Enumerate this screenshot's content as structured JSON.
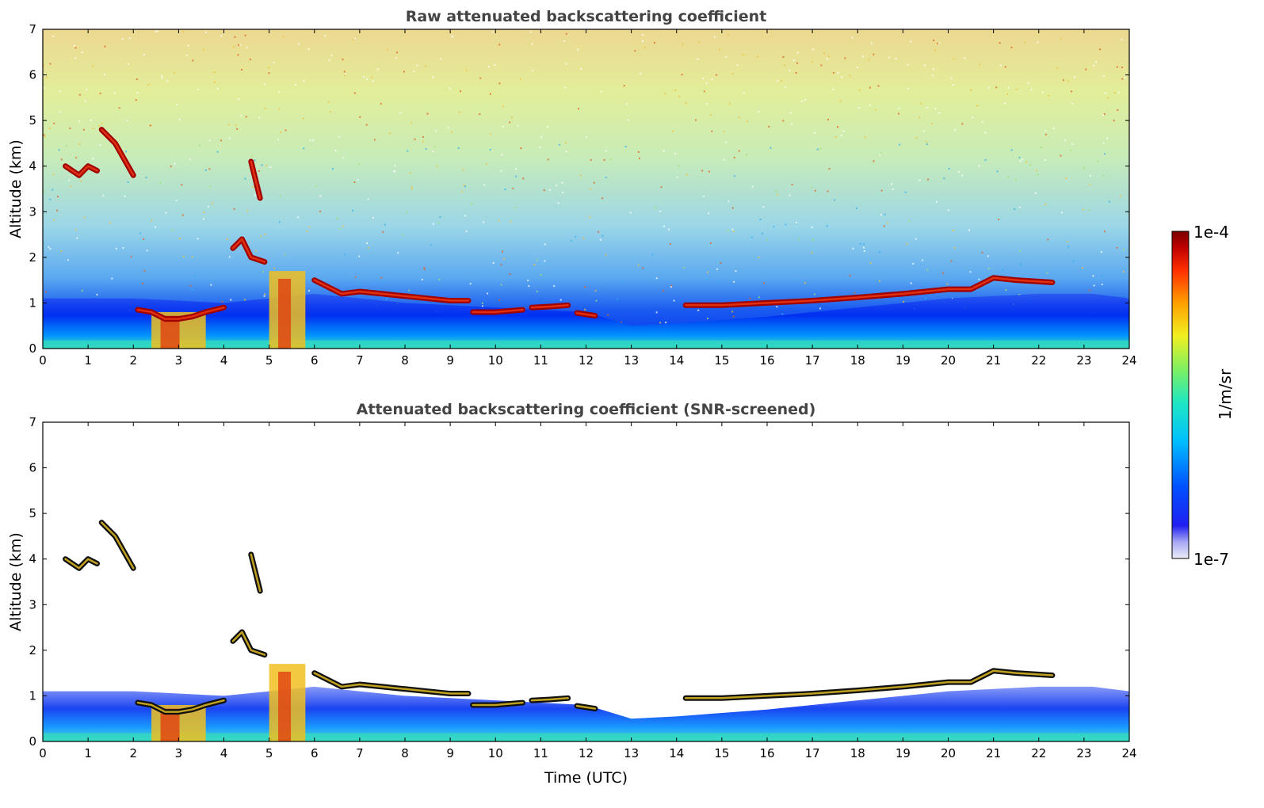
{
  "chart_data": [
    {
      "type": "heatmap",
      "title": "Raw attenuated backscattering coefficient",
      "xlabel": "",
      "ylabel": "Altitude (km)",
      "xlim": [
        0,
        24
      ],
      "ylim": [
        0,
        7
      ],
      "xticks": [
        "0",
        "1",
        "2",
        "3",
        "4",
        "5",
        "6",
        "7",
        "8",
        "9",
        "10",
        "11",
        "12",
        "13",
        "14",
        "15",
        "16",
        "17",
        "18",
        "19",
        "20",
        "21",
        "22",
        "23",
        "24"
      ],
      "yticks": [
        "0",
        "1",
        "2",
        "3",
        "4",
        "5",
        "6",
        "7"
      ],
      "screened": false,
      "cloud_layers": [
        {
          "x": [
            2.1,
            2.4,
            2.7,
            3.0,
            3.3,
            3.6,
            4.0
          ],
          "y": [
            0.85,
            0.8,
            0.65,
            0.65,
            0.7,
            0.8,
            0.9
          ]
        },
        {
          "x": [
            6.0,
            6.3,
            6.6,
            7.0,
            7.5,
            8.0,
            8.5,
            9.0,
            9.4
          ],
          "y": [
            1.5,
            1.35,
            1.2,
            1.25,
            1.2,
            1.15,
            1.1,
            1.05,
            1.05
          ]
        },
        {
          "x": [
            9.5,
            10.0,
            10.6
          ],
          "y": [
            0.8,
            0.8,
            0.85
          ]
        },
        {
          "x": [
            10.8,
            11.2,
            11.6
          ],
          "y": [
            0.9,
            0.92,
            0.95
          ]
        },
        {
          "x": [
            11.8,
            12.2
          ],
          "y": [
            0.78,
            0.72
          ]
        },
        {
          "x": [
            14.2,
            15.0,
            16.0,
            17.0,
            18.0,
            19.0,
            20.0,
            20.5,
            21.0,
            21.5,
            22.3
          ],
          "y": [
            0.95,
            0.95,
            1.0,
            1.05,
            1.12,
            1.2,
            1.3,
            1.3,
            1.55,
            1.5,
            1.45
          ]
        },
        {
          "x": [
            0.5,
            0.8,
            1.0,
            1.2
          ],
          "y": [
            4.0,
            3.8,
            4.0,
            3.9
          ]
        },
        {
          "x": [
            1.3,
            1.6,
            2.0
          ],
          "y": [
            4.8,
            4.5,
            3.8
          ]
        },
        {
          "x": [
            4.2,
            4.4,
            4.6,
            4.9
          ],
          "y": [
            2.2,
            2.4,
            2.0,
            1.9
          ]
        },
        {
          "x": [
            4.6,
            4.8
          ],
          "y": [
            4.1,
            3.3
          ]
        }
      ],
      "colorbar": {
        "min_label": "1e-7",
        "max_label": "1e-4",
        "unit": "1/m/sr",
        "scale": "log"
      }
    },
    {
      "type": "heatmap",
      "title": "Attenuated backscattering coefficient (SNR-screened)",
      "xlabel": "Time (UTC)",
      "ylabel": "Altitude (km)",
      "xlim": [
        0,
        24
      ],
      "ylim": [
        0,
        7
      ],
      "xticks": [
        "0",
        "1",
        "2",
        "3",
        "4",
        "5",
        "6",
        "7",
        "8",
        "9",
        "10",
        "11",
        "12",
        "13",
        "14",
        "15",
        "16",
        "17",
        "18",
        "19",
        "20",
        "21",
        "22",
        "23",
        "24"
      ],
      "yticks": [
        "0",
        "1",
        "2",
        "3",
        "4",
        "5",
        "6",
        "7"
      ],
      "screened": true,
      "cloud_layers": [
        {
          "x": [
            2.1,
            2.4,
            2.7,
            3.0,
            3.3,
            3.6,
            4.0
          ],
          "y": [
            0.85,
            0.8,
            0.65,
            0.65,
            0.7,
            0.8,
            0.9
          ]
        },
        {
          "x": [
            6.0,
            6.3,
            6.6,
            7.0,
            7.5,
            8.0,
            8.5,
            9.0,
            9.4
          ],
          "y": [
            1.5,
            1.35,
            1.2,
            1.25,
            1.2,
            1.15,
            1.1,
            1.05,
            1.05
          ]
        },
        {
          "x": [
            9.5,
            10.0,
            10.6
          ],
          "y": [
            0.8,
            0.8,
            0.85
          ]
        },
        {
          "x": [
            10.8,
            11.2,
            11.6
          ],
          "y": [
            0.9,
            0.92,
            0.95
          ]
        },
        {
          "x": [
            11.8,
            12.2
          ],
          "y": [
            0.78,
            0.72
          ]
        },
        {
          "x": [
            14.2,
            15.0,
            16.0,
            17.0,
            18.0,
            19.0,
            20.0,
            20.5,
            21.0,
            21.5,
            22.3
          ],
          "y": [
            0.95,
            0.95,
            1.0,
            1.05,
            1.12,
            1.2,
            1.3,
            1.3,
            1.55,
            1.5,
            1.45
          ]
        },
        {
          "x": [
            0.5,
            0.8,
            1.0,
            1.2
          ],
          "y": [
            4.0,
            3.8,
            4.0,
            3.9
          ]
        },
        {
          "x": [
            1.3,
            1.6,
            2.0
          ],
          "y": [
            4.8,
            4.5,
            3.8
          ]
        },
        {
          "x": [
            4.2,
            4.4,
            4.6,
            4.9
          ],
          "y": [
            2.2,
            2.4,
            2.0,
            1.9
          ]
        },
        {
          "x": [
            4.6,
            4.8
          ],
          "y": [
            4.1,
            3.3
          ]
        }
      ],
      "colorbar": {
        "min_label": "1e-7",
        "max_label": "1e-4",
        "unit": "1/m/sr",
        "scale": "log"
      }
    }
  ],
  "colorbar": {
    "max_label": "1e-4",
    "min_label": "1e-7",
    "unit_label": "1/m/sr"
  },
  "colors": {
    "background": "#ffffff",
    "title": "#444444",
    "colormap": [
      "#e8e8f8",
      "#9090f0",
      "#1010f0",
      "#0060ff",
      "#00c0ff",
      "#20e0c0",
      "#80f060",
      "#f0f020",
      "#ffa000",
      "#ff3000",
      "#c00000",
      "#800000"
    ]
  }
}
